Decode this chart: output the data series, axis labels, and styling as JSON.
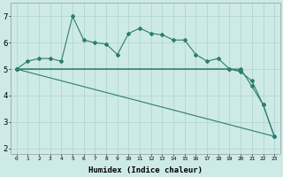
{
  "xlabel": "Humidex (Indice chaleur)",
  "color": "#2e7d6e",
  "bg_color": "#cdeae6",
  "grid_color": "#b0d8d2",
  "ylim": [
    1.8,
    7.5
  ],
  "xlim": [
    -0.5,
    23.5
  ],
  "yticks": [
    2,
    3,
    4,
    5,
    6,
    7
  ],
  "xticks": [
    0,
    1,
    2,
    3,
    4,
    5,
    6,
    7,
    8,
    9,
    10,
    11,
    12,
    13,
    14,
    15,
    16,
    17,
    18,
    19,
    20,
    21,
    22,
    23
  ],
  "line1_x": [
    0,
    1,
    2,
    3,
    4,
    5,
    6,
    7,
    8,
    9,
    10,
    11,
    12,
    13,
    14,
    15,
    16,
    17,
    18,
    19,
    20
  ],
  "line1_y": [
    5.0,
    5.3,
    5.4,
    5.4,
    5.3,
    7.0,
    6.1,
    6.0,
    5.95,
    5.55,
    6.35,
    6.55,
    6.35,
    6.3,
    6.1,
    6.1,
    5.55,
    5.3,
    5.4,
    5.0,
    4.95
  ],
  "line2_x": [
    0,
    19,
    20,
    21,
    22,
    23
  ],
  "line2_y": [
    5.0,
    5.0,
    4.9,
    4.55,
    3.65,
    2.45
  ],
  "line3_x": [
    0,
    20,
    21,
    22,
    23
  ],
  "line3_y": [
    5.0,
    5.0,
    4.35,
    3.65,
    2.45
  ],
  "line4_x": [
    0,
    23
  ],
  "line4_y": [
    5.0,
    2.45
  ]
}
